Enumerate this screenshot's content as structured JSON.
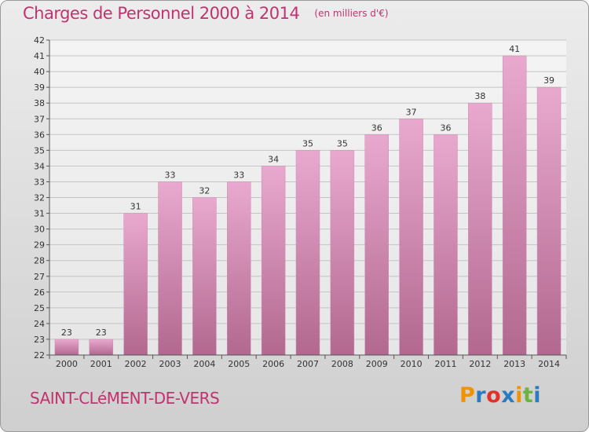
{
  "chart_data": {
    "type": "bar",
    "title": "Charges de Personnel 2000 à 2014",
    "subtitle": "(en milliers d'€)",
    "categories": [
      "2000",
      "2001",
      "2002",
      "2003",
      "2004",
      "2005",
      "2006",
      "2007",
      "2008",
      "2009",
      "2010",
      "2011",
      "2012",
      "2013",
      "2014"
    ],
    "values": [
      23,
      23,
      31,
      33,
      32,
      33,
      34,
      35,
      35,
      36,
      37,
      36,
      38,
      41,
      39
    ],
    "ylim": [
      22,
      42
    ],
    "yticks": [
      22,
      23,
      24,
      25,
      26,
      27,
      28,
      29,
      30,
      31,
      32,
      33,
      34,
      35,
      36,
      37,
      38,
      39,
      40,
      41,
      42
    ],
    "grid": true,
    "bar_color_top": "#e9a9cf",
    "bar_color_bottom": "#b2688f"
  },
  "footer": {
    "commune": "SAINT-CLéMENT-DE-VERS",
    "logo": {
      "text": "Proxiti",
      "letters": [
        {
          "char": "P",
          "color": "#f39200"
        },
        {
          "char": "r",
          "color": "#2c7bbf"
        },
        {
          "char": "o",
          "color": "#e2312b"
        },
        {
          "char": "x",
          "color": "#2c7bbf"
        },
        {
          "char": "i",
          "color": "#f39200"
        },
        {
          "char": "t",
          "color": "#6cb33f"
        },
        {
          "char": "i",
          "color": "#2c7bbf"
        }
      ]
    }
  },
  "colors": {
    "title": "#c0336f",
    "axis_text": "#333333",
    "grid": "#c4c4c4"
  }
}
